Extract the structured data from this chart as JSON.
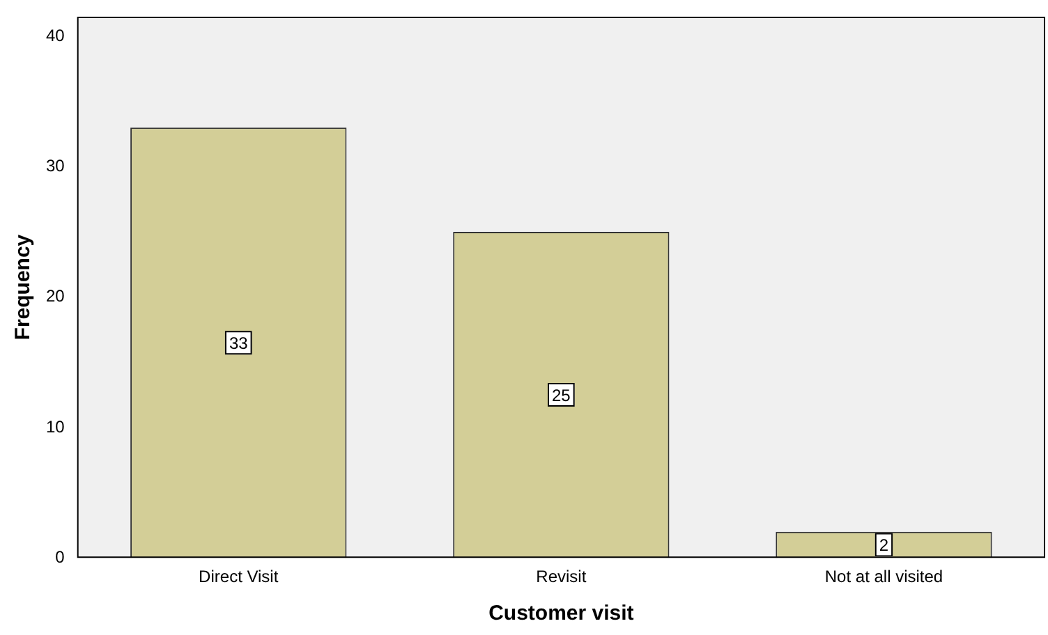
{
  "chart_data": {
    "type": "bar",
    "xlabel": "Customer visit",
    "ylabel": "Frequency",
    "categories": [
      "Direct Visit",
      "Revisit",
      "Not at all visited"
    ],
    "values": [
      33,
      25,
      2
    ],
    "color": "#d3ce97",
    "ylim": [
      0,
      41.5
    ],
    "yticks": [
      0,
      10,
      20,
      30,
      40
    ],
    "grid": false,
    "legend": false,
    "data_labels": true
  }
}
